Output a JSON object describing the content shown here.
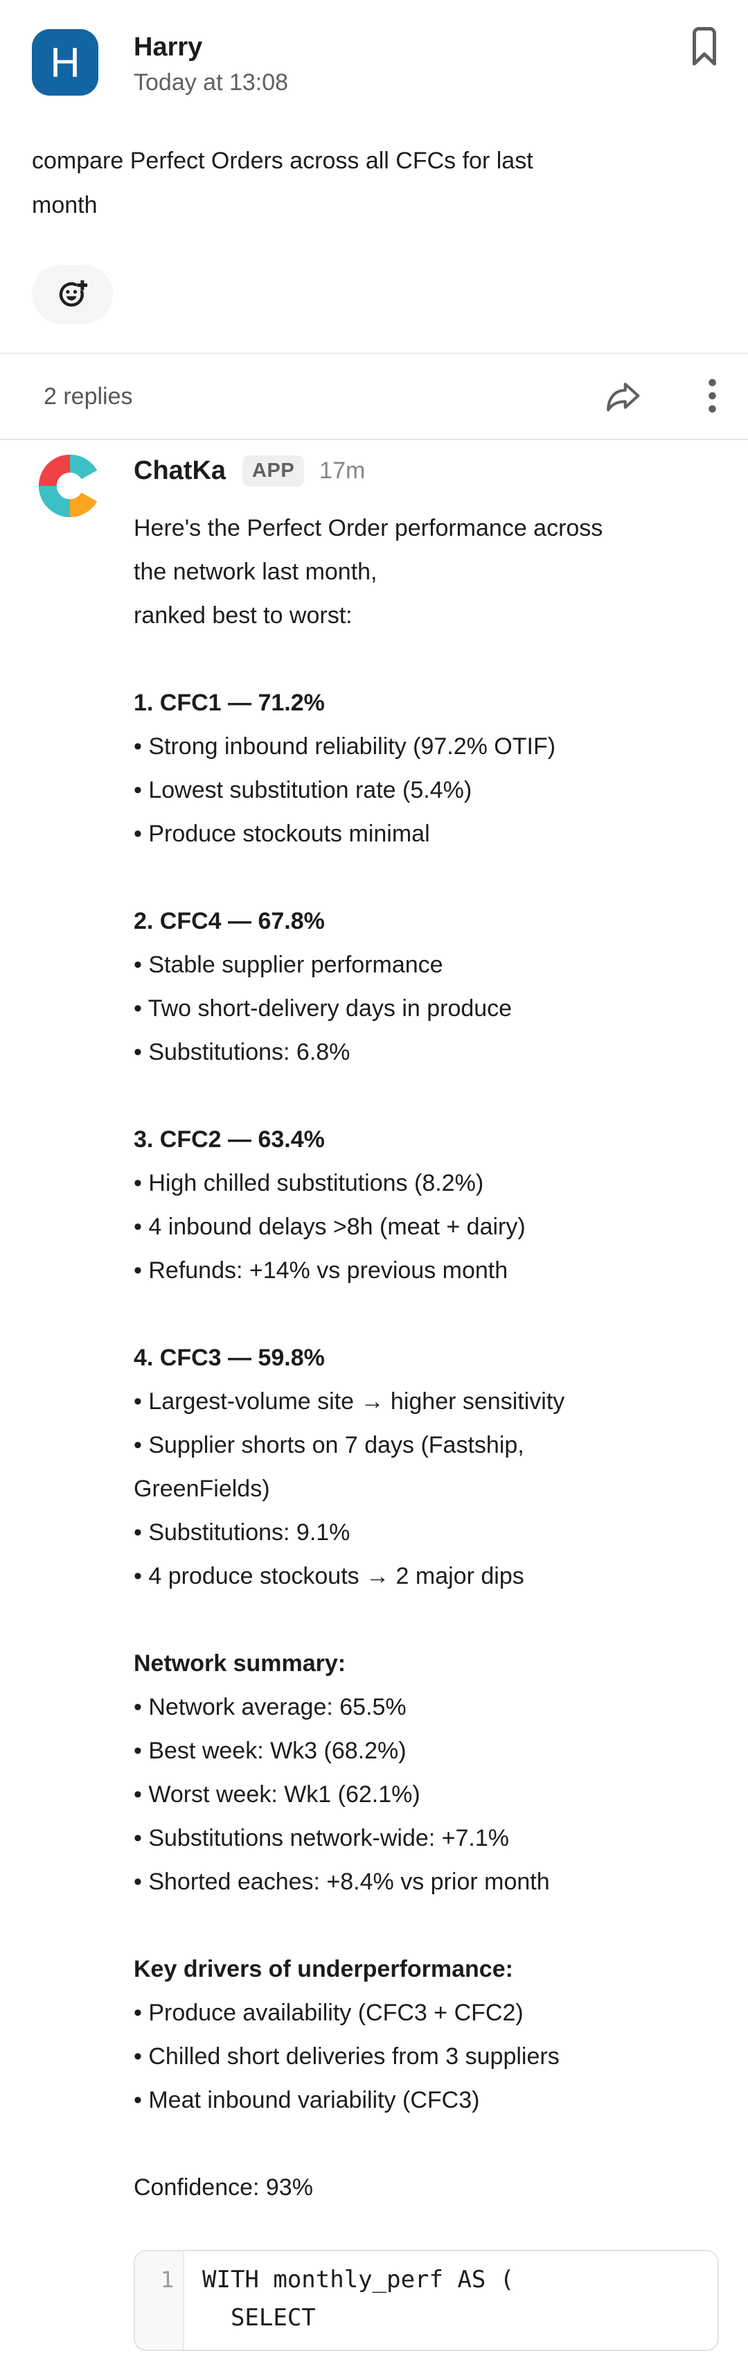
{
  "original_message": {
    "author": "Harry",
    "avatar_letter": "H",
    "timestamp": "Today at 13:08",
    "text": "compare Perfect Orders across all CFCs for last\nmonth"
  },
  "thread_bar": {
    "replies_label": "2 replies"
  },
  "reply": {
    "author": "ChatKa",
    "app_badge": "APP",
    "timestamp": "17m",
    "bullet_char": "•",
    "intro": "Here's the Perfect Order performance across\nthe network last month,\nranked best to worst:",
    "sections": [
      {
        "title": "1. CFC1 — 71.2%",
        "bullets": [
          "Strong inbound reliability (97.2% OTIF)",
          "Lowest substitution rate (5.4%)",
          "Produce stockouts minimal"
        ]
      },
      {
        "title": "2. CFC4 — 67.8%",
        "bullets": [
          "Stable supplier performance",
          "Two short-delivery days in produce",
          "Substitutions: 6.8%"
        ]
      },
      {
        "title": "3. CFC2 — 63.4%",
        "bullets": [
          "High chilled substitutions (8.2%)",
          "4 inbound delays >8h (meat + dairy)",
          "Refunds: +14% vs previous month"
        ]
      },
      {
        "title": "4. CFC3 — 59.8%",
        "bullets": [
          "Largest-volume site → higher sensitivity",
          "Supplier shorts on 7 days (Fastship,\nGreenFields)",
          "Substitutions: 9.1%",
          "4 produce stockouts → 2 major dips"
        ]
      },
      {
        "title": "Network summary:",
        "bullets": [
          "Network average: 65.5%",
          "Best week: Wk3 (68.2%)",
          "Worst week: Wk1 (62.1%)",
          "Substitutions network-wide: +7.1%",
          "Shorted eaches: +8.4% vs prior month"
        ]
      },
      {
        "title": "Key drivers of underperformance:",
        "bullets": [
          "Produce availability (CFC3 + CFC2)",
          "Chilled short deliveries from 3 suppliers",
          "Meat inbound variability (CFC3)"
        ]
      }
    ],
    "confidence": "Confidence: 93%",
    "code_block": {
      "line_number": "1",
      "lines": [
        "WITH monthly_perf AS (",
        "  SELECT"
      ]
    }
  },
  "colors": {
    "text_primary": "#1d1c1d",
    "text_secondary": "#616061",
    "avatar_blue": "#1264a3",
    "logo_red": "#ee4245",
    "logo_teal": "#3cc0c6",
    "logo_orange": "#f9a61e",
    "icon_gray": "#5e5e5e",
    "badge_bg": "#f0efef",
    "pill_bg": "#f6f5f5",
    "border": "#e2e2e2"
  }
}
